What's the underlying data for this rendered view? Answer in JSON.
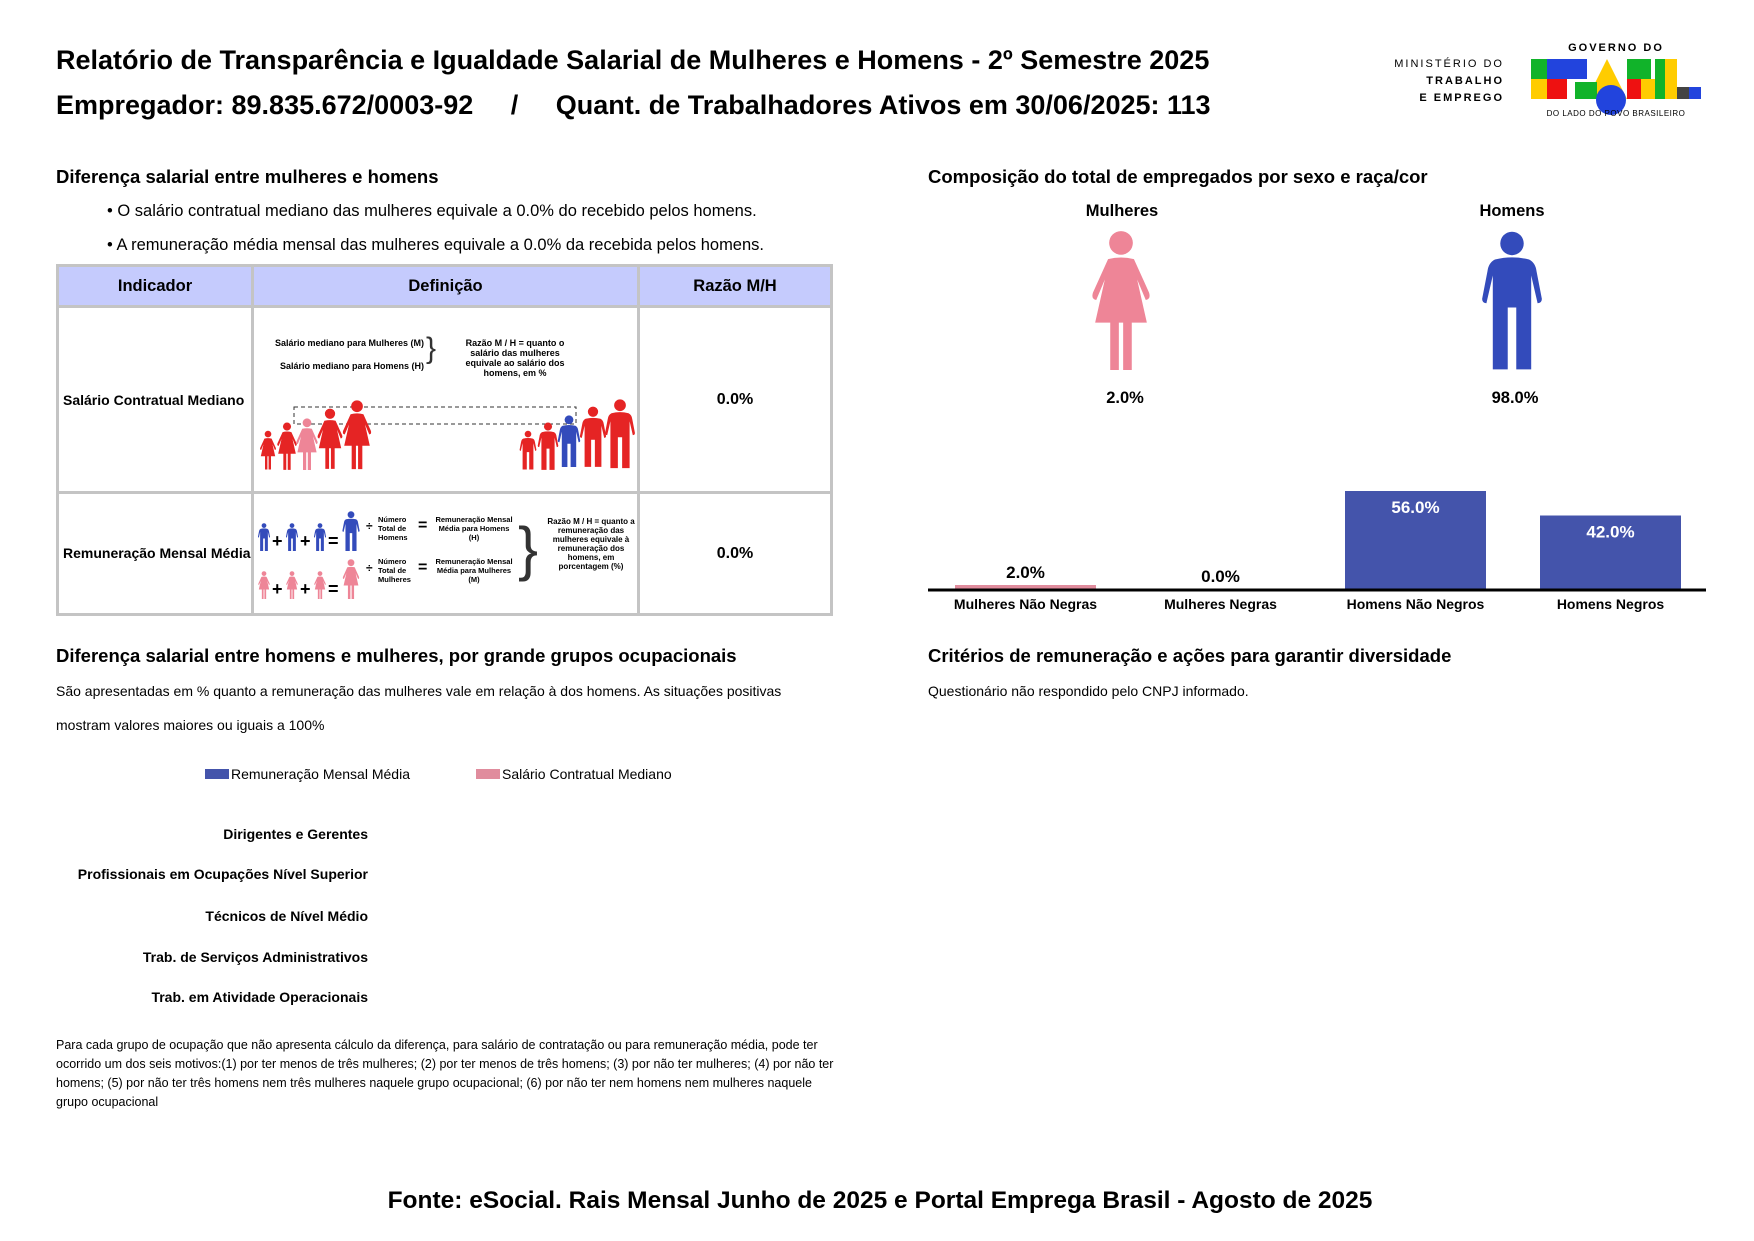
{
  "header": {
    "title": "Relatório de Transparência e Igualdade Salarial de Mulheres e Homens - 2º Semestre 2025",
    "employer": "Empregador: 89.835.672/0003-92     /     Quant. de Trabalhadores Ativos em 30/06/2025: 113",
    "ministry": [
      "MINISTÉRIO DO",
      "TRABALHO",
      "E EMPREGO"
    ],
    "logo": {
      "top": "GOVERNO DO",
      "word": "BRASIL",
      "tagline": "DO LADO DO POVO BRASILEIRO"
    }
  },
  "salary_gap": {
    "heading": "Diferença salarial entre mulheres e homens",
    "bullets": [
      "• O salário contratual mediano das mulheres equivale a 0.0% do recebido pelos homens.",
      "• A remuneração média mensal das mulheres equivale a 0.0% da recebida pelos homens."
    ],
    "table": {
      "headers": [
        "Indicador",
        "Definição",
        "Razão M/H"
      ],
      "rows": [
        {
          "indicator": "Salário Contratual Mediano",
          "ratio": "0.0%",
          "def": {
            "m": "Salário mediano para Mulheres (M)",
            "h": "Salário mediano para Homens (H)",
            "note": "Razão M / H = quanto o salário das mulheres equivale ao salário dos homens, em %"
          }
        },
        {
          "indicator": "Remuneração Mensal Média",
          "ratio": "0.0%",
          "def": {
            "div_h": "Número Total de Homens",
            "res_h": "Remuneração Mensal Média para Homens (H)",
            "div_m": "Número Total de Mulheres",
            "res_m": "Remuneração Mensal Média para Mulheres (M)",
            "note": "Razão M / H = quanto a remuneração das mulheres equivale à remuneração dos homens, em porcentagem (%)"
          }
        }
      ]
    }
  },
  "composition": {
    "heading": "Composição do total de empregados por sexo e raça/cor",
    "women": {
      "label": "Mulheres",
      "value": "2.0%",
      "color": "#ee8597"
    },
    "men": {
      "label": "Homens",
      "value": "98.0%",
      "color": "#334bbb"
    }
  },
  "chart_data": {
    "type": "bar",
    "categories": [
      "Mulheres Não Negras",
      "Mulheres Negras",
      "Homens Não Negros",
      "Homens Negros"
    ],
    "values": [
      2.0,
      0.0,
      56.0,
      42.0
    ],
    "labels": [
      "2.0%",
      "0.0%",
      "56.0%",
      "42.0%"
    ],
    "colors": [
      "#e08c9d",
      "#e08c9d",
      "#4454ab",
      "#4454ab"
    ],
    "ylim": [
      0,
      60
    ]
  },
  "occupations": {
    "heading": "Diferença salarial entre homens e mulheres, por grande grupos ocupacionais",
    "description": [
      "São apresentadas em % quanto a remuneração das mulheres vale em relação à dos homens. As situações positivas",
      "mostram valores maiores ou iguais a 100%"
    ],
    "legend": [
      {
        "label": "Remuneração Mensal Média",
        "color": "#4454ab"
      },
      {
        "label": "Salário Contratual Mediano",
        "color": "#e08c9d"
      }
    ],
    "groups": [
      "Dirigentes e Gerentes",
      "Profissionais em Ocupações Nível Superior",
      "Técnicos de Nível Médio",
      "Trab. de Serviços Administrativos",
      "Trab. em Atividade Operacionais"
    ],
    "footnote": "Para cada grupo de ocupação que não apresenta cálculo da diferença, para salário de contratação ou para remuneração média, pode ter ocorrido um dos seis motivos:(1) por ter menos de três mulheres; (2) por ter menos de três homens; (3) por não ter mulheres; (4) por não ter homens; (5) por não ter três homens nem três mulheres naquele grupo ocupacional; (6) por não ter nem homens nem mulheres naquele grupo ocupacional"
  },
  "criteria": {
    "heading": "Critérios de remuneração e ações para garantir diversidade",
    "text": "Questionário não respondido pelo CNPJ informado."
  },
  "footer": "Fonte: eSocial. Rais Mensal Junho de 2025 e Portal Emprega Brasil - Agosto de 2025"
}
